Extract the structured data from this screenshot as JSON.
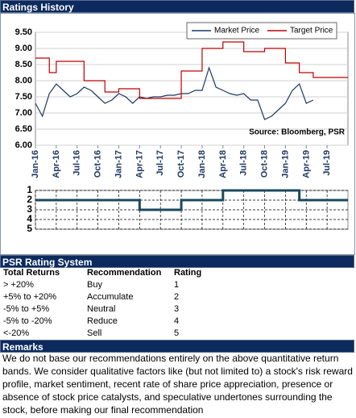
{
  "header": {
    "title": "Ratings History"
  },
  "chart_data": [
    {
      "type": "line",
      "x": [
        "2016-01",
        "2016-02",
        "2016-03",
        "2016-04",
        "2016-05",
        "2016-06",
        "2016-07",
        "2016-08",
        "2016-09",
        "2016-10",
        "2016-11",
        "2016-12",
        "2017-01",
        "2017-02",
        "2017-03",
        "2017-04",
        "2017-05",
        "2017-06",
        "2017-07",
        "2017-08",
        "2017-09",
        "2017-10",
        "2017-11",
        "2017-12",
        "2018-01",
        "2018-02",
        "2018-03",
        "2018-04",
        "2018-05",
        "2018-06",
        "2018-07",
        "2018-08",
        "2018-09",
        "2018-10",
        "2018-11",
        "2018-12",
        "2019-01",
        "2019-02",
        "2019-03",
        "2019-04",
        "2019-05",
        "2019-06",
        "2019-07",
        "2019-08",
        "2019-09",
        "2019-10"
      ],
      "series": [
        {
          "name": "Market Price",
          "color": "#1f3864",
          "step": false,
          "values": [
            7.3,
            6.9,
            7.6,
            7.9,
            7.7,
            7.5,
            7.6,
            7.8,
            7.7,
            7.5,
            7.3,
            7.4,
            7.6,
            7.5,
            7.3,
            7.5,
            7.45,
            7.5,
            7.5,
            7.55,
            7.55,
            7.6,
            7.6,
            7.7,
            7.7,
            8.4,
            7.8,
            7.7,
            7.6,
            7.55,
            7.6,
            7.4,
            7.4,
            6.8,
            6.9,
            7.1,
            7.3,
            7.7,
            7.9,
            7.3,
            7.4,
            null,
            null,
            null,
            null,
            null
          ]
        },
        {
          "name": "Target Price",
          "color": "#c00000",
          "step": true,
          "values": [
            8.7,
            8.7,
            8.25,
            8.6,
            8.6,
            8.6,
            8.6,
            8.0,
            8.0,
            8.0,
            7.65,
            7.65,
            7.75,
            7.75,
            7.75,
            7.45,
            7.45,
            7.45,
            7.45,
            7.45,
            7.45,
            8.3,
            8.3,
            8.3,
            9.0,
            9.0,
            9.0,
            9.2,
            9.2,
            9.2,
            8.9,
            8.9,
            8.9,
            9.0,
            9.0,
            9.0,
            8.55,
            8.55,
            8.25,
            8.25,
            8.1,
            8.1,
            8.1,
            8.1,
            8.1,
            8.1
          ]
        }
      ],
      "xlim": [
        "2016-01",
        "2019-10"
      ],
      "xticks": [
        {
          "value": "2016-01",
          "label": "Jan-16"
        },
        {
          "value": "2016-04",
          "label": "Apr-16"
        },
        {
          "value": "2016-07",
          "label": "Jul-16"
        },
        {
          "value": "2016-10",
          "label": "Oct-16"
        },
        {
          "value": "2017-01",
          "label": "Jan-17"
        },
        {
          "value": "2017-04",
          "label": "Apr-17"
        },
        {
          "value": "2017-07",
          "label": "Jul-17"
        },
        {
          "value": "2017-10",
          "label": "Oct-17"
        },
        {
          "value": "2018-01",
          "label": "Jan-18"
        },
        {
          "value": "2018-04",
          "label": "Apr-18"
        },
        {
          "value": "2018-07",
          "label": "Jul-18"
        },
        {
          "value": "2018-10",
          "label": "Oct-18"
        },
        {
          "value": "2019-01",
          "label": "Jan-19"
        },
        {
          "value": "2019-04",
          "label": "Apr-19"
        },
        {
          "value": "2019-07",
          "label": "Jul-19"
        }
      ],
      "ylim": [
        6,
        9.5
      ],
      "yticks": [
        {
          "value": 6,
          "label": "6.00"
        },
        {
          "value": 6.5,
          "label": "6.50"
        },
        {
          "value": 7,
          "label": "7.00"
        },
        {
          "value": 7.5,
          "label": "7.50"
        },
        {
          "value": 8,
          "label": "8.00"
        },
        {
          "value": 8.5,
          "label": "8.50"
        },
        {
          "value": 9,
          "label": "9.00"
        },
        {
          "value": 9.5,
          "label": "9.50"
        }
      ],
      "grid": true,
      "legend": "top-right",
      "annotation": "Source: Bloomberg, PSR"
    },
    {
      "type": "line",
      "x": [
        "2016-01",
        "2016-02",
        "2016-03",
        "2016-04",
        "2016-05",
        "2016-06",
        "2016-07",
        "2016-08",
        "2016-09",
        "2016-10",
        "2016-11",
        "2016-12",
        "2017-01",
        "2017-02",
        "2017-03",
        "2017-04",
        "2017-05",
        "2017-06",
        "2017-07",
        "2017-08",
        "2017-09",
        "2017-10",
        "2017-11",
        "2017-12",
        "2018-01",
        "2018-02",
        "2018-03",
        "2018-04",
        "2018-05",
        "2018-06",
        "2018-07",
        "2018-08",
        "2018-09",
        "2018-10",
        "2018-11",
        "2018-12",
        "2019-01",
        "2019-02",
        "2019-03",
        "2019-04",
        "2019-05",
        "2019-06",
        "2019-07",
        "2019-08",
        "2019-09",
        "2019-10"
      ],
      "series": [
        {
          "color": "#1b4a5e",
          "step": true,
          "values": [
            2,
            2,
            2,
            2,
            2,
            2,
            2,
            2,
            2,
            2,
            2,
            2,
            2,
            2,
            2,
            3,
            3,
            3,
            3,
            3,
            3,
            2,
            2,
            2,
            2,
            2,
            2,
            1,
            1,
            1,
            1,
            1,
            1,
            1,
            1,
            1,
            1,
            1,
            2,
            2,
            2,
            2,
            2,
            2,
            2,
            2
          ]
        }
      ],
      "xlim": [
        "2016-01",
        "2019-10"
      ],
      "ylim": [
        1,
        5
      ],
      "y_inverted": true,
      "yticks": [
        1,
        2,
        3,
        4,
        5
      ],
      "grid": true
    }
  ],
  "rating_system": {
    "title": "PSR Rating System",
    "columns": [
      "Total Returns",
      "Recommendation",
      "Rating"
    ],
    "rows": [
      [
        "> +20%",
        "Buy",
        "1"
      ],
      [
        "+5% to +20%",
        "Accumulate",
        "2"
      ],
      [
        "-5% to +5%",
        "Neutral",
        "3"
      ],
      [
        "-5% to -20%",
        "Reduce",
        "4"
      ],
      [
        "<-20%",
        "Sell",
        "5"
      ]
    ]
  },
  "remarks": {
    "title": "Remarks",
    "text": "We do not base our recommendations entirely on the  above quantitative return bands.  We consider qualitative factors like (but not limited to) a stock's risk reward profile, market sentiment, recent rate of share price appreciation, presence or absence of stock price catalysts, and speculative undertones surrounding the stock, before making our final recommendation"
  }
}
